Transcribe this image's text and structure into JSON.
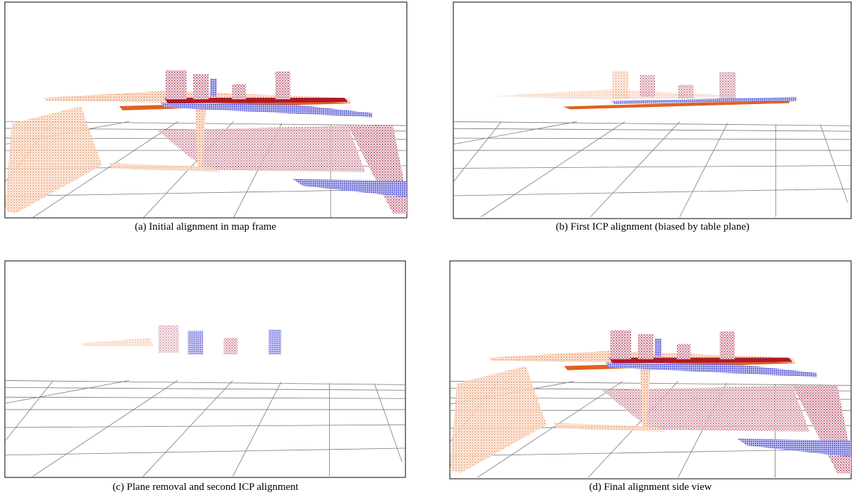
{
  "figure": {
    "panels": [
      {
        "caption": "(a) Initial alignment in map frame"
      },
      {
        "caption": "(b) First ICP alignment (biased by table plane)"
      },
      {
        "caption": "(c) Plane removal and second ICP alignment"
      },
      {
        "caption": "(d) Final alignment side view"
      }
    ]
  }
}
